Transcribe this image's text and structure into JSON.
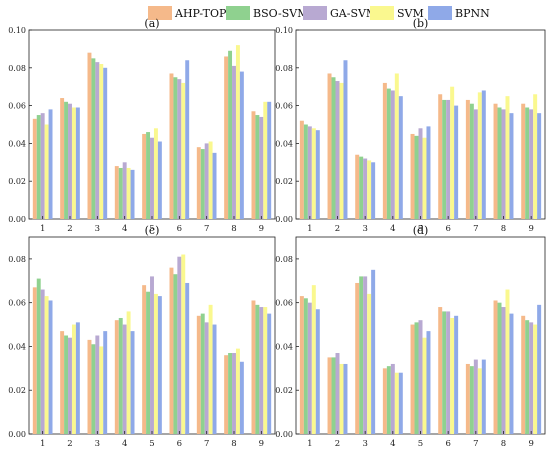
{
  "legend": [
    {
      "name": "AHP-TOPSIS",
      "color": "#f5b98a"
    },
    {
      "name": "BSO-SVM",
      "color": "#8fd18f"
    },
    {
      "name": "GA-SVM",
      "color": "#b8a9d2"
    },
    {
      "name": "SVM",
      "color": "#faf88f"
    },
    {
      "name": "BPNN",
      "color": "#8fa9e8"
    }
  ],
  "chart_data": [
    {
      "type": "bar",
      "panel_label": "(a)",
      "categories": [
        "1",
        "2",
        "3",
        "4",
        "5",
        "6",
        "7",
        "8",
        "9"
      ],
      "ylim": [
        0,
        0.1
      ],
      "yticks": [
        "0.00",
        "0.02",
        "0.04",
        "0.06",
        "0.08",
        "0.10"
      ],
      "series": [
        {
          "name": "AHP-TOPSIS",
          "values": [
            0.053,
            0.064,
            0.088,
            0.028,
            0.045,
            0.077,
            0.038,
            0.086,
            0.057
          ]
        },
        {
          "name": "BSO-SVM",
          "values": [
            0.055,
            0.062,
            0.085,
            0.027,
            0.046,
            0.075,
            0.037,
            0.089,
            0.055
          ]
        },
        {
          "name": "GA-SVM",
          "values": [
            0.056,
            0.061,
            0.083,
            0.03,
            0.043,
            0.074,
            0.04,
            0.081,
            0.054
          ]
        },
        {
          "name": "SVM",
          "values": [
            0.05,
            0.059,
            0.082,
            0.027,
            0.048,
            0.072,
            0.041,
            0.092,
            0.062
          ]
        },
        {
          "name": "BPNN",
          "values": [
            0.058,
            0.059,
            0.08,
            0.026,
            0.041,
            0.084,
            0.035,
            0.078,
            0.062
          ]
        }
      ]
    },
    {
      "type": "bar",
      "panel_label": "(b)",
      "categories": [
        "1",
        "2",
        "3",
        "4",
        "5",
        "6",
        "7",
        "8",
        "9"
      ],
      "ylim": [
        0,
        0.1
      ],
      "yticks": [
        "0.00",
        "0.02",
        "0.04",
        "0.06",
        "0.08",
        "0.10"
      ],
      "series": [
        {
          "name": "AHP-TOPSIS",
          "values": [
            0.052,
            0.077,
            0.034,
            0.072,
            0.045,
            0.066,
            0.063,
            0.061,
            0.061
          ]
        },
        {
          "name": "BSO-SVM",
          "values": [
            0.05,
            0.075,
            0.033,
            0.069,
            0.044,
            0.063,
            0.061,
            0.059,
            0.059
          ]
        },
        {
          "name": "GA-SVM",
          "values": [
            0.049,
            0.073,
            0.032,
            0.068,
            0.048,
            0.063,
            0.058,
            0.058,
            0.058
          ]
        },
        {
          "name": "SVM",
          "values": [
            0.048,
            0.072,
            0.031,
            0.077,
            0.043,
            0.07,
            0.067,
            0.065,
            0.066
          ]
        },
        {
          "name": "BPNN",
          "values": [
            0.047,
            0.084,
            0.03,
            0.065,
            0.049,
            0.06,
            0.068,
            0.056,
            0.056
          ]
        }
      ]
    },
    {
      "type": "bar",
      "panel_label": "(c)",
      "categories": [
        "1",
        "2",
        "3",
        "4",
        "5",
        "6",
        "7",
        "8",
        "9"
      ],
      "ylim": [
        0,
        0.09
      ],
      "yticks": [
        "0.00",
        "0.02",
        "0.04",
        "0.06",
        "0.08"
      ],
      "series": [
        {
          "name": "AHP-TOPSIS",
          "values": [
            0.067,
            0.047,
            0.043,
            0.052,
            0.068,
            0.076,
            0.054,
            0.036,
            0.061
          ]
        },
        {
          "name": "BSO-SVM",
          "values": [
            0.071,
            0.045,
            0.041,
            0.053,
            0.065,
            0.073,
            0.055,
            0.037,
            0.059
          ]
        },
        {
          "name": "GA-SVM",
          "values": [
            0.066,
            0.044,
            0.045,
            0.05,
            0.072,
            0.081,
            0.051,
            0.037,
            0.058
          ]
        },
        {
          "name": "SVM",
          "values": [
            0.063,
            0.05,
            0.04,
            0.056,
            0.064,
            0.082,
            0.059,
            0.039,
            0.058
          ]
        },
        {
          "name": "BPNN",
          "values": [
            0.061,
            0.051,
            0.047,
            0.047,
            0.063,
            0.069,
            0.05,
            0.033,
            0.055
          ]
        }
      ]
    },
    {
      "type": "bar",
      "panel_label": "(d)",
      "categories": [
        "1",
        "2",
        "3",
        "4",
        "5",
        "6",
        "7",
        "8",
        "9"
      ],
      "ylim": [
        0,
        0.09
      ],
      "yticks": [
        "0.00",
        "0.02",
        "0.04",
        "0.06",
        "0.08"
      ],
      "series": [
        {
          "name": "AHP-TOPSIS",
          "values": [
            0.063,
            0.035,
            0.069,
            0.03,
            0.05,
            0.058,
            0.032,
            0.061,
            0.054
          ]
        },
        {
          "name": "BSO-SVM",
          "values": [
            0.062,
            0.035,
            0.072,
            0.031,
            0.051,
            0.056,
            0.031,
            0.06,
            0.052
          ]
        },
        {
          "name": "GA-SVM",
          "values": [
            0.06,
            0.037,
            0.072,
            0.032,
            0.052,
            0.056,
            0.034,
            0.058,
            0.051
          ]
        },
        {
          "name": "SVM",
          "values": [
            0.068,
            0.032,
            0.064,
            0.028,
            0.044,
            0.053,
            0.03,
            0.066,
            0.05
          ]
        },
        {
          "name": "BPNN",
          "values": [
            0.057,
            0.032,
            0.075,
            0.028,
            0.047,
            0.054,
            0.034,
            0.055,
            0.059
          ]
        }
      ]
    }
  ]
}
